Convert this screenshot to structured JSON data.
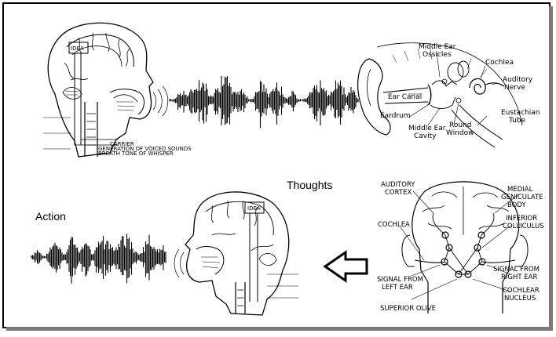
{
  "labels": {
    "thoughts": "Thoughts",
    "action": "Action"
  },
  "ear_parts": {
    "middle_ear_ossicles_1": "Middle Ear",
    "middle_ear_ossicles_2": "Ossicles",
    "cochlea": "Cochlea",
    "auditory_nerve_1": "Auditory",
    "auditory_nerve_2": "Nerve",
    "ear_canal": "Ear Canal",
    "eardrum": "Eardrum",
    "middle_ear_cavity_1": "Middle Ear",
    "middle_ear_cavity_2": "Cavity",
    "round_window_1": "Round",
    "round_window_2": "Window",
    "eustachian_tube_1": "Eustachian",
    "eustachian_tube_2": "Tube"
  },
  "brain_parts": {
    "auditory_cortex_1": "AUDITORY",
    "auditory_cortex_2": "CORTEX",
    "medial_geniculate_1": "MEDIAL",
    "medial_geniculate_2": "GENICULATE",
    "medial_geniculate_3": "BODY",
    "cochlea": "COCHLEA",
    "inferior_colliculus_1": "INFERIOR",
    "inferior_colliculus_2": "COLLICULUS",
    "signal_left_1": "SIGNAL FROM",
    "signal_left_2": "LEFT EAR",
    "signal_right_1": "SIGNAL FROM",
    "signal_right_2": "RIGHT EAR",
    "cochlear_nucleus_1": "COCHLEAR",
    "cochlear_nucleus_2": "NUCLEUS",
    "superior_olive": "SUPERIOR OLIVE"
  },
  "head_top": {
    "box": "IDEA",
    "note1": "CARRIER",
    "note2": "GENERATION OF VOICED SOUNDS",
    "note3": "BREATH TONE OF WHISPER"
  },
  "head_bottom": {
    "box": "IDEA"
  }
}
